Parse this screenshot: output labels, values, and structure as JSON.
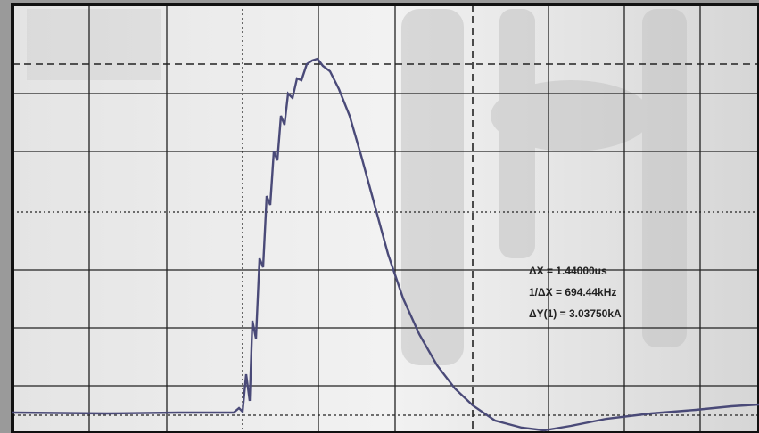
{
  "readouts": [
    "ΔX = 1.44000us",
    "1/ΔX = 694.44kHz",
    "ΔY(1) = 3.03750kA"
  ]
}
